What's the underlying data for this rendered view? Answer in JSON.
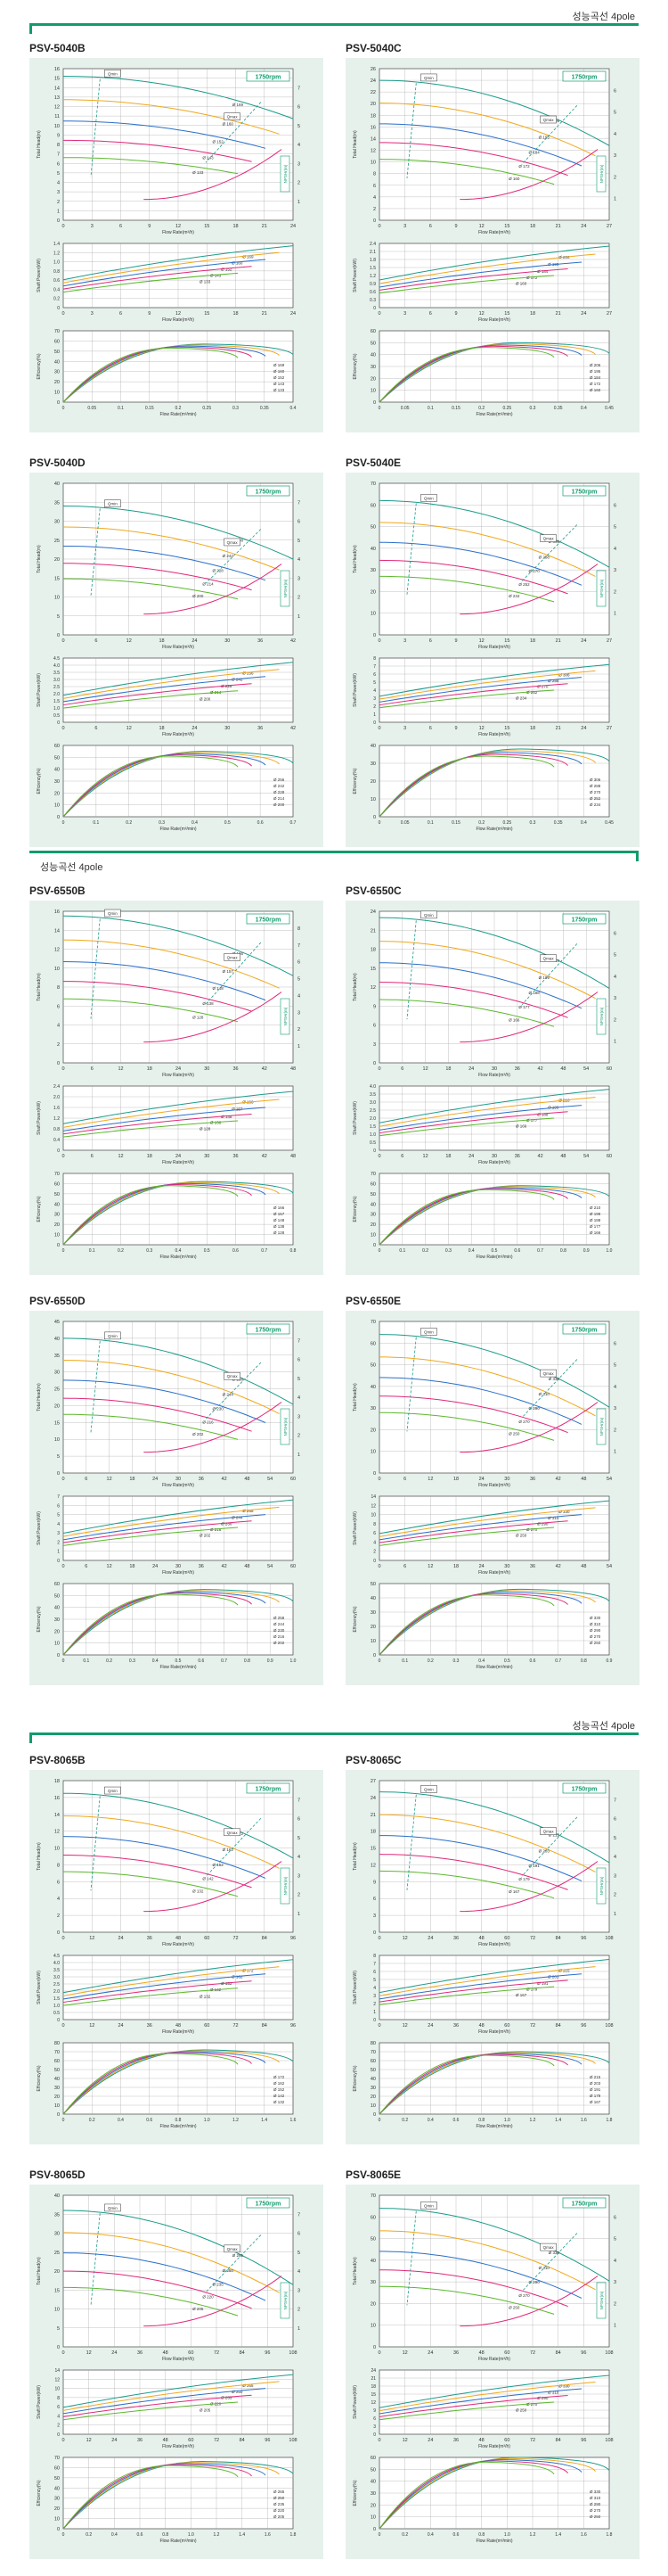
{
  "colors": {
    "accent": "#129b6f",
    "panel_bg": "#e6f1ec",
    "teal": "#1b9b8a",
    "orange": "#f0a81c",
    "blue": "#2a6fc9",
    "magenta": "#e0287a",
    "green": "#5cb82e"
  },
  "sections": [
    {
      "title": "성능곡선 4pole",
      "align": "right"
    },
    {
      "title": "성능곡선 4pole",
      "align": "left"
    },
    {
      "title": "성능곡선 4pole",
      "align": "right"
    }
  ],
  "labels": {
    "rpm": "1750rpm",
    "qmin": "Qmin",
    "qmax": "Qmax",
    "npshr": "NPSHr(m)",
    "total_head": "Total Head(m)",
    "shaft_power": "Shaft Power(kW)",
    "efficiency": "Efficiency(%)",
    "flow_m3h": "Flow Rate(m³/h)",
    "flow_m3min": "Flow Rate(m³/min)"
  },
  "chart_data": [
    {
      "type": "line",
      "title": "PSV-5040B",
      "x_ticks": [
        "0",
        "3",
        "6",
        "9",
        "12",
        "15",
        "18",
        "21",
        "24"
      ],
      "head_ticks": [
        "0",
        "1",
        "2",
        "3",
        "4",
        "5",
        "6",
        "7",
        "8",
        "9",
        "10",
        "11",
        "12",
        "13",
        "14",
        "15",
        "16"
      ],
      "npsh_ticks": [
        "1",
        "2",
        "3",
        "4",
        "5",
        "6",
        "7"
      ],
      "power_ticks": [
        "0",
        "0.2",
        "0.4",
        "0.6",
        "0.8",
        "1.0",
        "1.2",
        "1.4"
      ],
      "eff_ticks": [
        "0",
        "10",
        "20",
        "30",
        "40",
        "50",
        "60",
        "70"
      ],
      "m3min_ticks": [
        "0",
        "0.05",
        "0.1",
        "0.15",
        "0.2",
        "0.25",
        "0.3",
        "0.35",
        "0.4"
      ],
      "xmax": 24,
      "hmax": 16,
      "pmax": 1.4,
      "impellers": [
        "Ø 169",
        "Ø 160",
        "Ø 152",
        "Ø 143",
        "Ø 133"
      ],
      "head": [
        [
          0,
          15.2
        ],
        [
          24,
          12.0
        ]
      ],
      "power_end": [
        1.35,
        1.2,
        1.05,
        0.9,
        0.75
      ],
      "eff_peak": [
        57,
        56,
        55,
        54,
        53
      ]
    },
    {
      "type": "line",
      "title": "PSV-5040C",
      "x_ticks": [
        "0",
        "3",
        "6",
        "9",
        "12",
        "15",
        "18",
        "21",
        "24",
        "27"
      ],
      "head_ticks": [
        "0",
        "2",
        "4",
        "6",
        "8",
        "10",
        "12",
        "14",
        "16",
        "18",
        "20",
        "22",
        "24",
        "26"
      ],
      "npsh_ticks": [
        "1",
        "2",
        "3",
        "4",
        "5",
        "6"
      ],
      "power_ticks": [
        "0",
        "0.3",
        "0.6",
        "0.9",
        "1.2",
        "1.5",
        "1.8",
        "2.1",
        "2.4"
      ],
      "eff_ticks": [
        "0",
        "10",
        "20",
        "30",
        "40",
        "50",
        "60"
      ],
      "m3min_ticks": [
        "0",
        "0.05",
        "0.1",
        "0.15",
        "0.2",
        "0.25",
        "0.3",
        "0.35",
        "0.4",
        "0.45"
      ],
      "xmax": 27,
      "hmax": 26,
      "pmax": 2.4,
      "impellers": [
        "Ø 206",
        "Ø 195",
        "Ø 184",
        "Ø 172",
        "Ø 160"
      ],
      "head": [
        [
          0,
          24
        ],
        [
          27,
          16
        ]
      ],
      "power_end": [
        2.3,
        2.0,
        1.7,
        1.45,
        1.2
      ],
      "eff_peak": [
        50,
        49,
        48,
        47,
        46
      ]
    },
    {
      "type": "line",
      "title": "PSV-5040D",
      "x_ticks": [
        "0",
        "6",
        "12",
        "18",
        "24",
        "30",
        "36",
        "42"
      ],
      "head_ticks": [
        "0",
        "5",
        "10",
        "15",
        "20",
        "25",
        "30",
        "35",
        "40"
      ],
      "npsh_ticks": [
        "1",
        "2",
        "3",
        "4",
        "5",
        "6",
        "7"
      ],
      "power_ticks": [
        "0",
        "0.5",
        "1.0",
        "1.5",
        "2.0",
        "2.5",
        "3.0",
        "3.5",
        "4.0",
        "4.5"
      ],
      "eff_ticks": [
        "0",
        "10",
        "20",
        "30",
        "40",
        "50",
        "60"
      ],
      "m3min_ticks": [
        "0",
        "0.1",
        "0.2",
        "0.3",
        "0.4",
        "0.5",
        "0.6",
        "0.7"
      ],
      "xmax": 42,
      "hmax": 40,
      "pmax": 4.5,
      "impellers": [
        "Ø 256",
        "Ø 242",
        "Ø 228",
        "Ø 214",
        "Ø 200"
      ],
      "head": [
        [
          0,
          34
        ],
        [
          42,
          24
        ]
      ],
      "power_end": [
        4.2,
        3.7,
        3.2,
        2.7,
        2.2
      ],
      "eff_peak": [
        55,
        54,
        53,
        52,
        51
      ]
    },
    {
      "type": "line",
      "title": "PSV-5040E",
      "x_ticks": [
        "0",
        "3",
        "6",
        "9",
        "12",
        "15",
        "18",
        "21",
        "24",
        "27"
      ],
      "head_ticks": [
        "0",
        "10",
        "20",
        "30",
        "40",
        "50",
        "60",
        "70"
      ],
      "npsh_ticks": [
        "1",
        "2",
        "3",
        "4",
        "5",
        "6"
      ],
      "power_ticks": [
        "0",
        "1",
        "2",
        "3",
        "4",
        "5",
        "6",
        "7",
        "8"
      ],
      "eff_ticks": [
        "0",
        "10",
        "20",
        "30",
        "40"
      ],
      "m3min_ticks": [
        "0",
        "0.05",
        "0.1",
        "0.15",
        "0.2",
        "0.25",
        "0.3",
        "0.35",
        "0.4",
        "0.45"
      ],
      "xmax": 27,
      "hmax": 70,
      "pmax": 8,
      "impellers": [
        "Ø 306",
        "Ø 288",
        "Ø 270",
        "Ø 252",
        "Ø 234"
      ],
      "head": [
        [
          0,
          62
        ],
        [
          27,
          40
        ]
      ],
      "power_end": [
        7.2,
        6.4,
        5.6,
        4.8,
        4.0
      ],
      "eff_peak": [
        38,
        37,
        36,
        35,
        34
      ]
    },
    {
      "type": "line",
      "title": "PSV-6550B",
      "x_ticks": [
        "0",
        "6",
        "12",
        "18",
        "24",
        "30",
        "36",
        "42",
        "48"
      ],
      "head_ticks": [
        "0",
        "2",
        "4",
        "6",
        "8",
        "10",
        "12",
        "14",
        "16"
      ],
      "npsh_ticks": [
        "1",
        "2",
        "3",
        "4",
        "5",
        "6",
        "7",
        "8"
      ],
      "power_ticks": [
        "0",
        "0.4",
        "0.8",
        "1.2",
        "1.6",
        "2.0",
        "2.4"
      ],
      "eff_ticks": [
        "0",
        "10",
        "20",
        "30",
        "40",
        "50",
        "60",
        "70"
      ],
      "m3min_ticks": [
        "0",
        "0.1",
        "0.2",
        "0.3",
        "0.4",
        "0.5",
        "0.6",
        "0.7",
        "0.8"
      ],
      "xmax": 48,
      "hmax": 16,
      "pmax": 2.4,
      "impellers": [
        "Ø 166",
        "Ø 157",
        "Ø 148",
        "Ø 138",
        "Ø 128"
      ],
      "head": [
        [
          0,
          15.5
        ],
        [
          48,
          11
        ]
      ],
      "power_end": [
        2.2,
        1.9,
        1.6,
        1.35,
        1.1
      ],
      "eff_peak": [
        62,
        61,
        60,
        59,
        58
      ]
    },
    {
      "type": "line",
      "title": "PSV-6550C",
      "x_ticks": [
        "0",
        "6",
        "12",
        "18",
        "24",
        "30",
        "36",
        "42",
        "48",
        "54",
        "60"
      ],
      "head_ticks": [
        "0",
        "3",
        "6",
        "9",
        "12",
        "15",
        "18",
        "21",
        "24"
      ],
      "npsh_ticks": [
        "1",
        "2",
        "3",
        "4",
        "5",
        "6"
      ],
      "power_ticks": [
        "0",
        "0.5",
        "1.0",
        "1.5",
        "2.0",
        "2.5",
        "3.0",
        "3.5",
        "4.0"
      ],
      "eff_ticks": [
        "0",
        "10",
        "20",
        "30",
        "40",
        "50",
        "60",
        "70"
      ],
      "m3min_ticks": [
        "0",
        "0.1",
        "0.2",
        "0.3",
        "0.4",
        "0.5",
        "0.6",
        "0.7",
        "0.8",
        "0.9",
        "1.0"
      ],
      "xmax": 60,
      "hmax": 24,
      "pmax": 4,
      "impellers": [
        "Ø 210",
        "Ø 199",
        "Ø 188",
        "Ø 177",
        "Ø 166"
      ],
      "head": [
        [
          0,
          23
        ],
        [
          60,
          15
        ]
      ],
      "power_end": [
        3.8,
        3.3,
        2.8,
        2.4,
        2.0
      ],
      "eff_peak": [
        58,
        57,
        56,
        55,
        54
      ]
    },
    {
      "type": "line",
      "title": "PSV-6550D",
      "x_ticks": [
        "0",
        "6",
        "12",
        "18",
        "24",
        "30",
        "36",
        "42",
        "48",
        "54",
        "60"
      ],
      "head_ticks": [
        "0",
        "5",
        "10",
        "15",
        "20",
        "25",
        "30",
        "35",
        "40",
        "45"
      ],
      "npsh_ticks": [
        "1",
        "2",
        "3",
        "4",
        "5",
        "6",
        "7"
      ],
      "power_ticks": [
        "0",
        "1",
        "2",
        "3",
        "4",
        "5",
        "6",
        "7"
      ],
      "eff_ticks": [
        "0",
        "10",
        "20",
        "30",
        "40",
        "50",
        "60"
      ],
      "m3min_ticks": [
        "0",
        "0.1",
        "0.2",
        "0.3",
        "0.4",
        "0.5",
        "0.6",
        "0.7",
        "0.8",
        "0.9",
        "1.0"
      ],
      "xmax": 60,
      "hmax": 45,
      "pmax": 7,
      "impellers": [
        "Ø 258",
        "Ø 244",
        "Ø 230",
        "Ø 216",
        "Ø 202"
      ],
      "head": [
        [
          0,
          40
        ],
        [
          60,
          26
        ]
      ],
      "power_end": [
        6.6,
        5.8,
        5.0,
        4.3,
        3.6
      ],
      "eff_peak": [
        55,
        54,
        53,
        52,
        51
      ]
    },
    {
      "type": "line",
      "title": "PSV-6550E",
      "x_ticks": [
        "0",
        "6",
        "12",
        "18",
        "24",
        "30",
        "36",
        "42",
        "48",
        "54"
      ],
      "head_ticks": [
        "0",
        "10",
        "20",
        "30",
        "40",
        "50",
        "60",
        "70"
      ],
      "npsh_ticks": [
        "1",
        "2",
        "3",
        "4",
        "5",
        "6"
      ],
      "power_ticks": [
        "0",
        "2",
        "4",
        "6",
        "8",
        "10",
        "12",
        "14"
      ],
      "eff_ticks": [
        "0",
        "10",
        "20",
        "30",
        "40",
        "50"
      ],
      "m3min_ticks": [
        "0",
        "0.1",
        "0.2",
        "0.3",
        "0.4",
        "0.5",
        "0.6",
        "0.7",
        "0.8",
        "0.9"
      ],
      "xmax": 54,
      "hmax": 70,
      "pmax": 14,
      "impellers": [
        "Ø 330",
        "Ø 310",
        "Ø 290",
        "Ø 270",
        "Ø 250"
      ],
      "head": [
        [
          0,
          64
        ],
        [
          54,
          40
        ]
      ],
      "power_end": [
        13,
        11.5,
        10,
        8.6,
        7.2
      ],
      "eff_peak": [
        46,
        45,
        44,
        43,
        42
      ]
    },
    {
      "type": "line",
      "title": "PSV-8065B",
      "x_ticks": [
        "0",
        "12",
        "24",
        "36",
        "48",
        "60",
        "72",
        "84",
        "96"
      ],
      "head_ticks": [
        "0",
        "2",
        "4",
        "6",
        "8",
        "10",
        "12",
        "14",
        "16",
        "18"
      ],
      "npsh_ticks": [
        "1",
        "2",
        "3",
        "4",
        "5",
        "6",
        "7"
      ],
      "power_ticks": [
        "0",
        "0.5",
        "1.0",
        "1.5",
        "2.0",
        "2.5",
        "3.0",
        "3.5",
        "4.0",
        "4.5"
      ],
      "eff_ticks": [
        "0",
        "10",
        "20",
        "30",
        "40",
        "50",
        "60",
        "70",
        "80"
      ],
      "m3min_ticks": [
        "0",
        "0.2",
        "0.4",
        "0.6",
        "0.8",
        "1.0",
        "1.2",
        "1.4",
        "1.6"
      ],
      "xmax": 96,
      "hmax": 18,
      "pmax": 4.5,
      "impellers": [
        "Ø 172",
        "Ø 162",
        "Ø 152",
        "Ø 142",
        "Ø 132"
      ],
      "head": [
        [
          0,
          16.5
        ],
        [
          96,
          11
        ]
      ],
      "power_end": [
        4.2,
        3.7,
        3.2,
        2.7,
        2.2
      ],
      "eff_peak": [
        72,
        71,
        70,
        69,
        68
      ]
    },
    {
      "type": "line",
      "title": "PSV-8065C",
      "x_ticks": [
        "0",
        "12",
        "24",
        "36",
        "48",
        "60",
        "72",
        "84",
        "96",
        "108"
      ],
      "head_ticks": [
        "0",
        "3",
        "6",
        "9",
        "12",
        "15",
        "18",
        "21",
        "24",
        "27"
      ],
      "npsh_ticks": [
        "1",
        "2",
        "3",
        "4",
        "5",
        "6",
        "7"
      ],
      "power_ticks": [
        "0",
        "1",
        "2",
        "3",
        "4",
        "5",
        "6",
        "7",
        "8"
      ],
      "eff_ticks": [
        "0",
        "10",
        "20",
        "30",
        "40",
        "50",
        "60",
        "70",
        "80"
      ],
      "m3min_ticks": [
        "0",
        "0.2",
        "0.4",
        "0.6",
        "0.8",
        "1.0",
        "1.2",
        "1.4",
        "1.6",
        "1.8"
      ],
      "xmax": 108,
      "hmax": 27,
      "pmax": 8,
      "impellers": [
        "Ø 215",
        "Ø 203",
        "Ø 191",
        "Ø 179",
        "Ø 167"
      ],
      "head": [
        [
          0,
          25
        ],
        [
          108,
          16
        ]
      ],
      "power_end": [
        7.5,
        6.6,
        5.7,
        4.9,
        4.1
      ],
      "eff_peak": [
        70,
        69,
        68,
        67,
        66
      ]
    },
    {
      "type": "line",
      "title": "PSV-8065D",
      "x_ticks": [
        "0",
        "12",
        "24",
        "36",
        "48",
        "60",
        "72",
        "84",
        "96",
        "108"
      ],
      "head_ticks": [
        "0",
        "5",
        "10",
        "15",
        "20",
        "25",
        "30",
        "35",
        "40"
      ],
      "npsh_ticks": [
        "1",
        "2",
        "3",
        "4",
        "5",
        "6",
        "7"
      ],
      "power_ticks": [
        "0",
        "2",
        "4",
        "6",
        "8",
        "10",
        "12",
        "14"
      ],
      "eff_ticks": [
        "0",
        "10",
        "20",
        "30",
        "40",
        "50",
        "60",
        "70"
      ],
      "m3min_ticks": [
        "0",
        "0.2",
        "0.4",
        "0.6",
        "0.8",
        "1.0",
        "1.2",
        "1.4",
        "1.6",
        "1.8"
      ],
      "xmax": 108,
      "hmax": 40,
      "pmax": 14,
      "impellers": [
        "Ø 265",
        "Ø 250",
        "Ø 235",
        "Ø 220",
        "Ø 205"
      ],
      "head": [
        [
          0,
          36
        ],
        [
          108,
          22
        ]
      ],
      "power_end": [
        13,
        11.5,
        10,
        8.5,
        7
      ],
      "eff_peak": [
        66,
        65,
        64,
        63,
        62
      ]
    },
    {
      "type": "line",
      "title": "PSV-8065E",
      "x_ticks": [
        "0",
        "12",
        "24",
        "36",
        "48",
        "60",
        "72",
        "84",
        "96",
        "108"
      ],
      "head_ticks": [
        "0",
        "10",
        "20",
        "30",
        "40",
        "50",
        "60",
        "70"
      ],
      "npsh_ticks": [
        "1",
        "2",
        "3",
        "4",
        "5",
        "6"
      ],
      "power_ticks": [
        "0",
        "3",
        "6",
        "9",
        "12",
        "15",
        "18",
        "21",
        "24"
      ],
      "eff_ticks": [
        "0",
        "10",
        "20",
        "30",
        "40",
        "50",
        "60"
      ],
      "m3min_ticks": [
        "0",
        "0.2",
        "0.4",
        "0.6",
        "0.8",
        "1.0",
        "1.2",
        "1.4",
        "1.6",
        "1.8"
      ],
      "xmax": 108,
      "hmax": 70,
      "pmax": 24,
      "impellers": [
        "Ø 330",
        "Ø 310",
        "Ø 290",
        "Ø 270",
        "Ø 250"
      ],
      "head": [
        [
          0,
          64
        ],
        [
          108,
          40
        ]
      ],
      "power_end": [
        22,
        19.5,
        17,
        14.5,
        12
      ],
      "eff_peak": [
        60,
        59,
        58,
        57,
        56
      ]
    }
  ]
}
